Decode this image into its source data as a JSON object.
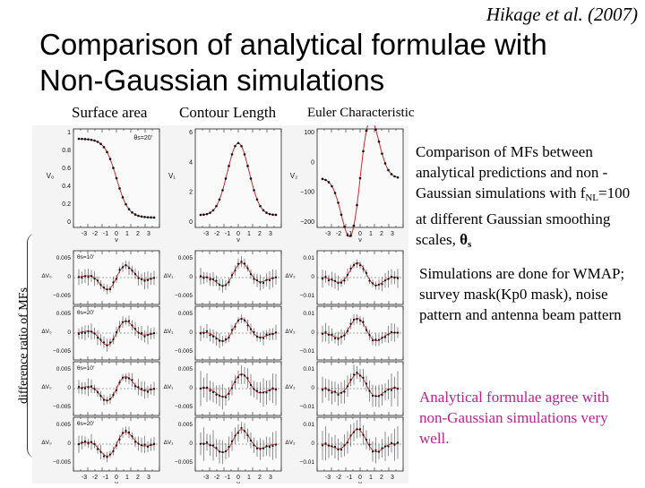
{
  "header": {
    "citation": "Hikage et al. (2007)",
    "title_line1": "Comparison of analytical formulae with",
    "title_line2": "Non-Gaussian simulations"
  },
  "columns": [
    "Surface area",
    "Contour Length",
    "Euler Characteristic"
  ],
  "figure": {
    "y_axis_label": "difference ratio of MFs",
    "x_axis_label": "ν",
    "x_ticks": [
      "-3",
      "-2",
      "-1",
      "0",
      "1",
      "2",
      "3"
    ],
    "top_panels": [
      {
        "ylabel": "V₀",
        "yticks": [
          "1",
          "0.8",
          "0.6",
          "0.4",
          "0.2",
          "0"
        ],
        "annotation": "θs=20'"
      },
      {
        "ylabel": "V₁",
        "yticks": [
          "6",
          "4",
          "2",
          "0"
        ]
      },
      {
        "ylabel": "V₂",
        "yticks": [
          "100",
          "0",
          "−100",
          "−200"
        ]
      }
    ],
    "ratio_row_annotations": [
      "θs=10'",
      "θs=20'",
      "θs=10'",
      "θs=20'"
    ],
    "ratio_yticks": [
      [
        "0.005",
        "0",
        "−0.005"
      ],
      [
        "0.005",
        "0",
        "−0.005"
      ],
      [
        "0.01",
        "0",
        "−0.01"
      ]
    ],
    "ratio_ylabels": [
      "ΔV₀",
      "ΔV₁",
      "ΔV₂"
    ]
  },
  "notes": {
    "n1_text": "Comparison of MFs between analytical predictions and non -Gaussian simulations with f",
    "n1_sub": "NL",
    "n1_text2": "=100 at different Gaussian smoothing scales, ",
    "n1_theta": "θ",
    "n1_theta_sub": "s",
    "n2": "Simulations are done for WMAP; survey mask(Kp0 mask), noise pattern and antenna beam pattern",
    "n3": "Analytical formulae agree with non-Gaussian simulations very well."
  },
  "colors": {
    "highlight": "#c0208e",
    "curve": "#cc2a2a"
  }
}
